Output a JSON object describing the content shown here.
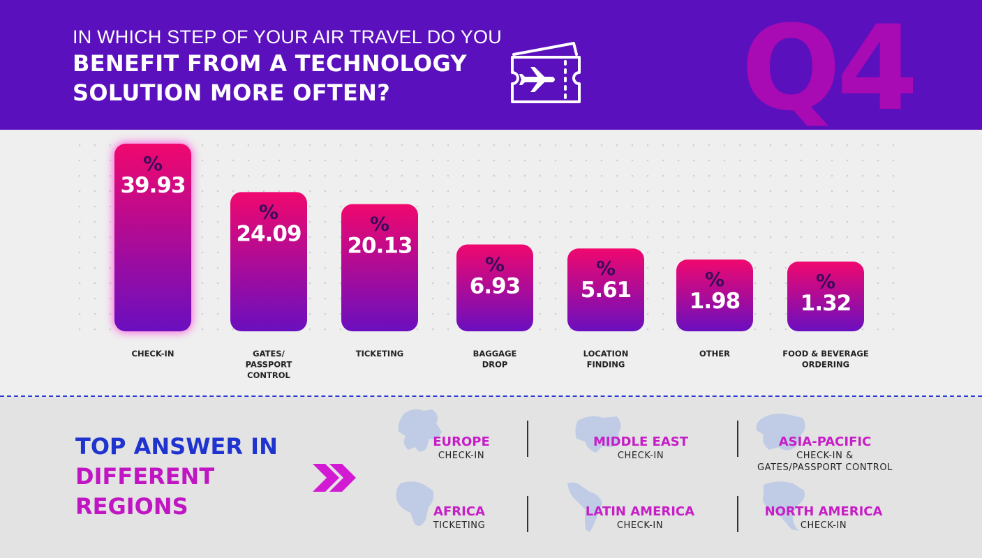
{
  "header": {
    "question_line1": "IN WHICH STEP OF YOUR AIR TRAVEL DO YOU",
    "question_line2": "BENEFIT FROM A TECHNOLOGY",
    "question_line3": "SOLUTION MORE OFTEN?",
    "badge": "Q4",
    "icon": "plane-ticket-icon",
    "background_color": "#5a10bc",
    "badge_color": "#a80ab4"
  },
  "chart_data": {
    "type": "bar",
    "categories": [
      [
        "CHECK-IN"
      ],
      [
        "GATES/",
        "PASSPORT",
        "CONTROL"
      ],
      [
        "TICKETING"
      ],
      [
        "BAGGAGE",
        "DROP"
      ],
      [
        "LOCATION",
        "FINDING"
      ],
      [
        "OTHER"
      ],
      [
        "FOOD & BEVERAGE",
        "ORDERING"
      ]
    ],
    "values": [
      39.93,
      24.09,
      20.13,
      6.93,
      5.61,
      1.98,
      1.32
    ],
    "value_labels": [
      "39.93",
      "24.09",
      "20.13",
      "6.93",
      "5.61",
      "1.98",
      "1.32"
    ],
    "unit_symbol": "%",
    "highlighted_index": 0,
    "bar_gradient": [
      "#f0086e",
      "#6a0fbf"
    ]
  },
  "regions_section": {
    "title_line1": "TOP ANSWER IN",
    "title_line2": "DIFFERENT",
    "title_line3": "REGIONS",
    "arrow_icon": "double-chevron-right-icon",
    "regions": [
      {
        "name": "EUROPE",
        "answer": [
          "CHECK-IN"
        ],
        "icon": "europe-map-icon"
      },
      {
        "name": "MIDDLE EAST",
        "answer": [
          "CHECK-IN"
        ],
        "icon": "middle-east-map-icon"
      },
      {
        "name": "ASIA-PACIFIC",
        "answer": [
          "CHECK-IN &",
          "GATES/PASSPORT CONTROL"
        ],
        "icon": "asia-pacific-map-icon"
      },
      {
        "name": "AFRICA",
        "answer": [
          "TICKETING"
        ],
        "icon": "africa-map-icon"
      },
      {
        "name": "LATIN AMERICA",
        "answer": [
          "CHECK-IN"
        ],
        "icon": "latin-america-map-icon"
      },
      {
        "name": "NORTH AMERICA",
        "answer": [
          "CHECK-IN"
        ],
        "icon": "north-america-map-icon"
      }
    ]
  }
}
